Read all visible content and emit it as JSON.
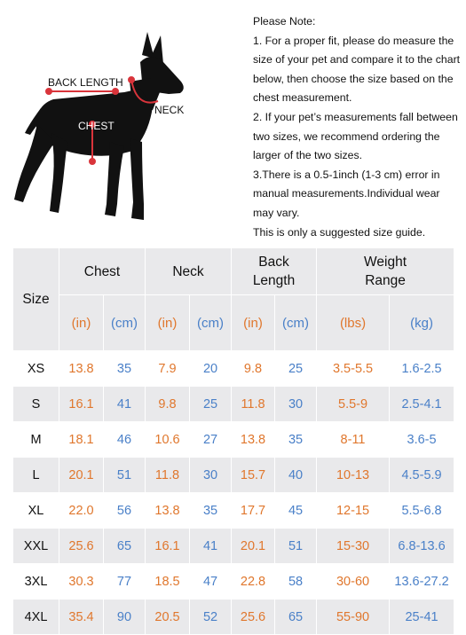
{
  "illustration": {
    "labels": {
      "back_length": "BACK LENGTH",
      "neck": "NECK",
      "chest": "CHEST"
    },
    "colors": {
      "silhouette": "#111111",
      "measure_line": "#d9343b"
    }
  },
  "note": {
    "title": "Please Note:",
    "items": [
      "1. For a proper fit, please do measure the size of your pet and compare it to the chart below, then choose the size based on the chest measurement.",
      "2. If your pet’s measurements fall between two sizes, we recommend ordering the larger of the two sizes.",
      "3.There is a 0.5-1inch (1-3 cm) error in manual measurements.Individual wear may vary.",
      "This is only a suggested size guide."
    ]
  },
  "table": {
    "size_header": "Size",
    "groups": [
      "Chest",
      "Neck",
      "Back\nLength",
      "Weight\nRange"
    ],
    "units": [
      "(in)",
      "(cm)",
      "(in)",
      "(cm)",
      "(in)",
      "(cm)",
      "(lbs)",
      "(kg)"
    ],
    "colors": {
      "imperial": "#e0772d",
      "metric": "#4a80c8",
      "band": "#e9e9eb"
    },
    "rows": [
      {
        "size": "XS",
        "values": [
          "13.8",
          "35",
          "7.9",
          "20",
          "9.8",
          "25",
          "3.5-5.5",
          "1.6-2.5"
        ]
      },
      {
        "size": "S",
        "values": [
          "16.1",
          "41",
          "9.8",
          "25",
          "11.8",
          "30",
          "5.5-9",
          "2.5-4.1"
        ]
      },
      {
        "size": "M",
        "values": [
          "18.1",
          "46",
          "10.6",
          "27",
          "13.8",
          "35",
          "8-11",
          "3.6-5"
        ]
      },
      {
        "size": "L",
        "values": [
          "20.1",
          "51",
          "11.8",
          "30",
          "15.7",
          "40",
          "10-13",
          "4.5-5.9"
        ]
      },
      {
        "size": "XL",
        "values": [
          "22.0",
          "56",
          "13.8",
          "35",
          "17.7",
          "45",
          "12-15",
          "5.5-6.8"
        ]
      },
      {
        "size": "XXL",
        "values": [
          "25.6",
          "65",
          "16.1",
          "41",
          "20.1",
          "51",
          "15-30",
          "6.8-13.6"
        ]
      },
      {
        "size": "3XL",
        "values": [
          "30.3",
          "77",
          "18.5",
          "47",
          "22.8",
          "58",
          "30-60",
          "13.6-27.2"
        ]
      },
      {
        "size": "4XL",
        "values": [
          "35.4",
          "90",
          "20.5",
          "52",
          "25.6",
          "65",
          "55-90",
          "25-41"
        ]
      }
    ]
  }
}
